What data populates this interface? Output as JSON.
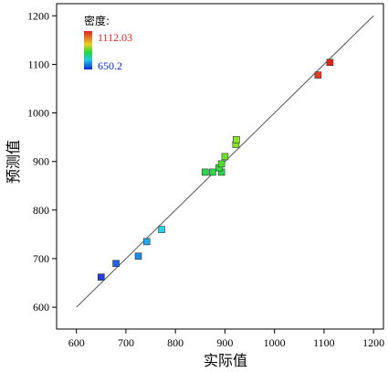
{
  "chart_data": {
    "type": "scatter",
    "xlabel": "实际值",
    "ylabel": "预测值",
    "xlim": [
      560,
      1220
    ],
    "ylim": [
      555,
      1225
    ],
    "x_ticks": [
      600,
      700,
      800,
      900,
      1000,
      1100,
      1200
    ],
    "y_ticks": [
      600,
      700,
      800,
      900,
      1000,
      1100,
      1200
    ],
    "reference_line": {
      "x": [
        600,
        1200
      ],
      "y": [
        600,
        1200
      ]
    },
    "grid": false,
    "legend": {
      "title": "密度:",
      "max_label": "1112.03",
      "min_label": "650.2",
      "max_color": "#e2221f",
      "min_color": "#0a2bd6",
      "placement": "top-left"
    },
    "points": [
      {
        "x": 650,
        "y": 662,
        "color": "#1f3fe0"
      },
      {
        "x": 680,
        "y": 690,
        "color": "#2266e6"
      },
      {
        "x": 725,
        "y": 705,
        "color": "#1f8ee8"
      },
      {
        "x": 742,
        "y": 735,
        "color": "#22a9ea"
      },
      {
        "x": 772,
        "y": 760,
        "color": "#2ed0e6"
      },
      {
        "x": 860,
        "y": 878,
        "color": "#26d948"
      },
      {
        "x": 875,
        "y": 878,
        "color": "#26d948"
      },
      {
        "x": 893,
        "y": 878,
        "color": "#26d948"
      },
      {
        "x": 888,
        "y": 887,
        "color": "#33dd3f"
      },
      {
        "x": 893,
        "y": 895,
        "color": "#4ae02a"
      },
      {
        "x": 900,
        "y": 910,
        "color": "#6ae22a"
      },
      {
        "x": 922,
        "y": 935,
        "color": "#8be42a"
      },
      {
        "x": 923,
        "y": 945,
        "color": "#8be42a"
      },
      {
        "x": 1088,
        "y": 1078,
        "color": "#e53b1f"
      },
      {
        "x": 1112,
        "y": 1104,
        "color": "#e2221f"
      }
    ]
  }
}
